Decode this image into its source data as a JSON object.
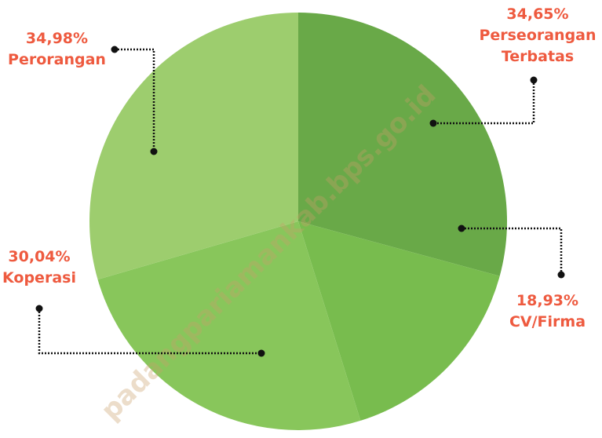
{
  "chart_data": {
    "type": "pie",
    "categories": [
      "Perseorangan Terbatas",
      "CV/Firma",
      "Koperasi",
      "Perorangan"
    ],
    "values": [
      34.65,
      18.93,
      30.04,
      34.98
    ],
    "value_labels": [
      "34,65%",
      "18,93%",
      "30,04%",
      "34,98%"
    ],
    "colors": [
      "#69a948",
      "#78bc4e",
      "#88c65b",
      "#9dcd6e"
    ],
    "watermark": "padangpariamankab.bps.go.id"
  }
}
